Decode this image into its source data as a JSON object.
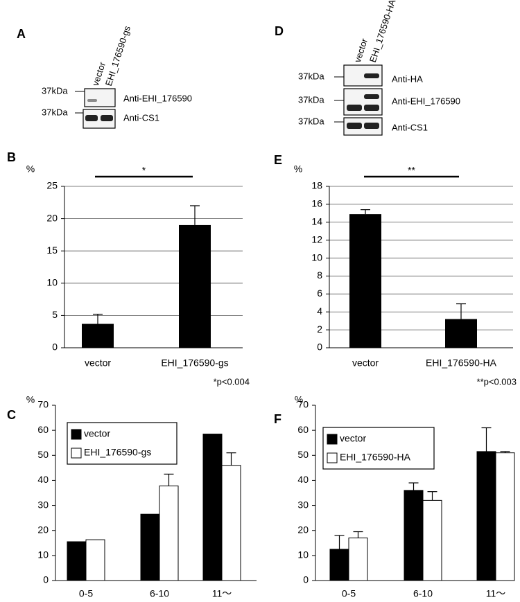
{
  "blots": [
    {
      "panel": "A",
      "lanes": [
        "vector",
        "EHI_176590-gs"
      ],
      "rows": [
        {
          "marker": "37kDa",
          "antibody": "Anti-EHI_176590"
        },
        {
          "marker": "37kDa",
          "antibody": "Anti-CS1"
        }
      ]
    },
    {
      "panel": "D",
      "lanes": [
        "vector",
        "EHI_176590-HA"
      ],
      "rows": [
        {
          "marker": "37kDa",
          "antibody": "Anti-HA"
        },
        {
          "marker": "37kDa",
          "antibody": "Anti-EHI_176590"
        },
        {
          "marker": "37kDa",
          "antibody": "Anti-CS1"
        }
      ]
    }
  ],
  "chart_data": [
    {
      "type": "bar",
      "panel": "B",
      "ylabel": "%",
      "categories": [
        "vector",
        "EHI_176590-gs"
      ],
      "values": [
        3.7,
        19.0
      ],
      "errors": [
        1.5,
        3.0
      ],
      "color": "#000000",
      "ylim": [
        0,
        25
      ],
      "yticks": [
        0,
        5,
        10,
        15,
        20,
        25
      ],
      "grid": true,
      "significance": "*",
      "footnote": "*p<0.004"
    },
    {
      "type": "bar",
      "panel": "E",
      "ylabel": "%",
      "categories": [
        "vector",
        "EHI_176590-HA"
      ],
      "values": [
        14.9,
        3.2
      ],
      "errors": [
        0.5,
        1.7
      ],
      "color": "#000000",
      "ylim": [
        0,
        18
      ],
      "yticks": [
        0,
        2,
        4,
        6,
        8,
        10,
        12,
        14,
        16,
        18
      ],
      "grid": true,
      "significance": "**",
      "footnote": "**p<0.003"
    },
    {
      "type": "grouped_bar",
      "panel": "C",
      "ylabel": "%",
      "categories": [
        "0-5",
        "6-10",
        "11～"
      ],
      "series": [
        {
          "name": "vector",
          "color": "#000000",
          "values": [
            15.5,
            26.5,
            58.5
          ],
          "errors": [
            null,
            null,
            null
          ]
        },
        {
          "name": "EHI_176590-gs",
          "color": "#ffffff",
          "values": [
            16.3,
            37.8,
            46.0
          ],
          "errors": [
            null,
            4.7,
            5.0
          ]
        }
      ],
      "ylim": [
        0,
        70
      ],
      "yticks": [
        0,
        10,
        20,
        30,
        40,
        50,
        60,
        70
      ],
      "grid": false,
      "legend": "top-left"
    },
    {
      "type": "grouped_bar",
      "panel": "F",
      "ylabel": "%",
      "categories": [
        "0-5",
        "6-10",
        "11～"
      ],
      "series": [
        {
          "name": "vector",
          "color": "#000000",
          "values": [
            12.5,
            36.0,
            51.5
          ],
          "errors": [
            5.5,
            3.0,
            9.5
          ]
        },
        {
          "name": "EHI_176590-HA",
          "color": "#ffffff",
          "values": [
            17.0,
            32.0,
            51.0
          ],
          "errors": [
            2.5,
            3.5,
            0.5
          ]
        }
      ],
      "ylim": [
        0,
        70
      ],
      "yticks": [
        0,
        10,
        20,
        30,
        40,
        50,
        60,
        70
      ],
      "grid": false,
      "legend": "top-left"
    }
  ]
}
